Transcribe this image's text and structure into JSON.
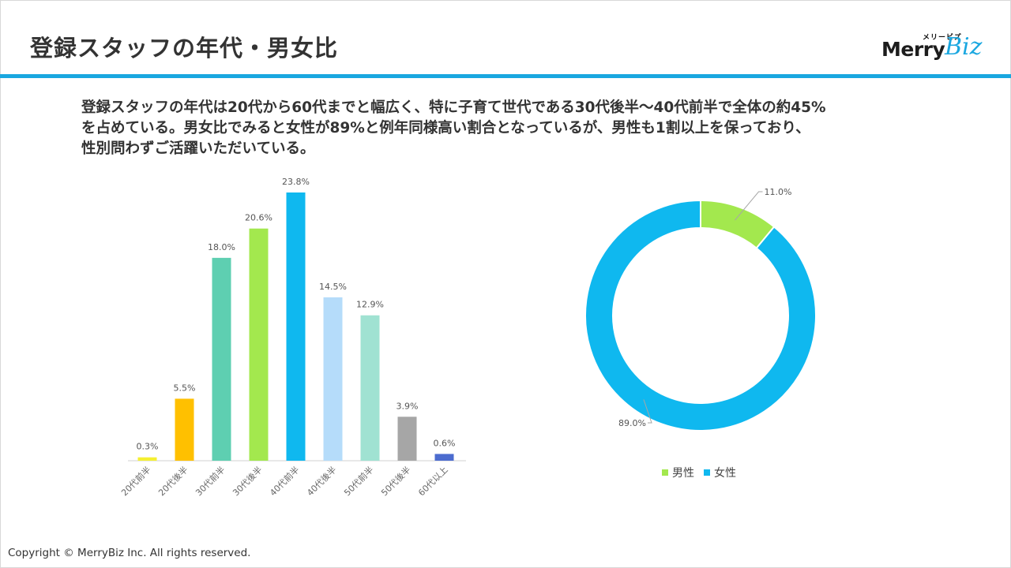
{
  "slide": {
    "title": "登録スタッフの年代・男女比",
    "description_lines": [
      "登録スタッフの年代は20代から60代までと幅広く、特に子育て世代である30代後半～40代前半で全体の約45%",
      "を占めている。男女比でみると女性が89%と例年同様高い割合となっているが、男性も1割以上を保っており、",
      "性別問わずご活躍いただいている。"
    ],
    "accent_color": "#1aa7e0",
    "footer": "Copyright © MerryBiz Inc. All rights reserved."
  },
  "logo": {
    "kana": "メリービズ",
    "word1": "Merry",
    "word2": "Biz"
  },
  "chart_data": [
    {
      "type": "bar",
      "categories": [
        "20代前半",
        "20代後半",
        "30代前半",
        "30代後半",
        "40代前半",
        "40代後半",
        "50代前半",
        "50代後半",
        "60代以上"
      ],
      "values": [
        0.3,
        5.5,
        18.0,
        20.6,
        23.8,
        14.5,
        12.9,
        3.9,
        0.6
      ],
      "data_labels": [
        "0.3%",
        "5.5%",
        "18.0%",
        "20.6%",
        "23.8%",
        "14.5%",
        "12.9%",
        "3.9%",
        "0.6%"
      ],
      "colors": [
        "#f5f032",
        "#ffc000",
        "#5ecfb1",
        "#a3e84e",
        "#0fb8ef",
        "#b5dcfa",
        "#a0e2d2",
        "#a6a6a6",
        "#4c6ccf"
      ],
      "ylim": [
        0,
        23.8
      ],
      "grid": false,
      "legend": "none",
      "title": "",
      "xlabel": "",
      "ylabel": ""
    },
    {
      "type": "pie",
      "style": "donut",
      "categories": [
        "男性",
        "女性"
      ],
      "values": [
        11.0,
        89.0
      ],
      "data_labels": [
        "11.0%",
        "89.0%"
      ],
      "colors": [
        "#a3e84e",
        "#0fb8ef"
      ],
      "legend": "bottom"
    }
  ]
}
